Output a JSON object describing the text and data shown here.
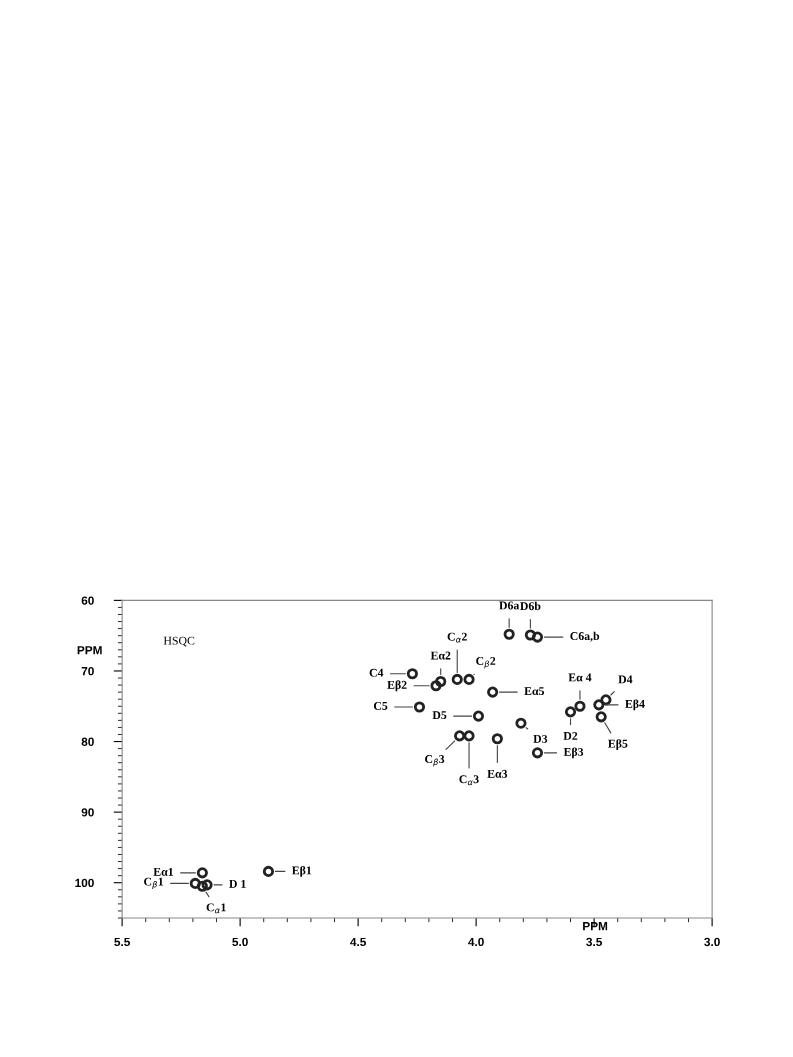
{
  "chart_data": {
    "type": "scatter",
    "xlabel": "PPM",
    "ylabel": "PPM",
    "x": [
      5.16,
      5.19,
      5.14,
      5.16,
      4.88,
      4.27,
      4.15,
      4.17,
      4.24,
      4.08,
      4.03,
      3.93,
      3.86,
      3.77,
      3.74,
      3.99,
      3.81,
      4.07,
      4.03,
      3.91,
      3.74,
      3.6,
      3.56,
      3.45,
      3.48,
      3.47
    ],
    "series": [
      {
        "color": "#222222",
        "values": [
          98.6,
          100.1,
          100.3,
          100.5,
          98.4,
          70.4,
          71.5,
          72.1,
          75.1,
          71.2,
          71.2,
          73.0,
          64.8,
          64.9,
          65.2,
          76.4,
          77.4,
          79.2,
          79.2,
          79.6,
          81.6,
          75.8,
          75.0,
          74.1,
          74.8,
          76.5
        ]
      }
    ],
    "marker": "circle",
    "annotations": [
      "HSQC",
      {
        "text": "Eα1",
        "x": 5.16,
        "y": 98.6
      },
      {
        "text": "C$_{β}$1",
        "x": 5.19,
        "y": 100.1
      },
      {
        "text": "D 1",
        "x": 5.14,
        "y": 100.3
      },
      {
        "text": "C$_{α}$1",
        "x": 5.16,
        "y": 100.5
      },
      {
        "text": "Eβ1",
        "x": 4.88,
        "y": 98.4
      },
      {
        "text": "C4",
        "x": 4.27,
        "y": 70.4
      },
      {
        "text": "Eα2",
        "x": 4.15,
        "y": 71.5
      },
      {
        "text": "Eβ2",
        "x": 4.17,
        "y": 72.1
      },
      {
        "text": "C5",
        "x": 4.24,
        "y": 75.1
      },
      {
        "text": "C$_{α}$2",
        "x": 4.08,
        "y": 71.2
      },
      {
        "text": "C$_{β}$2",
        "x": 4.03,
        "y": 71.2
      },
      {
        "text": "Eα5",
        "x": 3.93,
        "y": 73.0
      },
      {
        "text": "D6a",
        "x": 3.86,
        "y": 64.8
      },
      {
        "text": "D6b",
        "x": 3.77,
        "y": 64.9
      },
      {
        "text": "C6a,b",
        "x": 3.74,
        "y": 65.2
      },
      {
        "text": "D5",
        "x": 3.99,
        "y": 76.4
      },
      {
        "text": "D3",
        "x": 3.81,
        "y": 77.4
      },
      {
        "text": "C$_{β}$3",
        "x": 4.07,
        "y": 79.2
      },
      {
        "text": "C$_{α}$3",
        "x": 4.03,
        "y": 79.2
      },
      {
        "text": "Eα3",
        "x": 3.91,
        "y": 79.6
      },
      {
        "text": "Eβ3",
        "x": 3.74,
        "y": 81.6
      },
      {
        "text": "D2",
        "x": 3.6,
        "y": 75.8
      },
      {
        "text": "Eα 4",
        "x": 3.56,
        "y": 75.0
      },
      {
        "text": "D4",
        "x": 3.45,
        "y": 74.1
      },
      {
        "text": "Eβ4",
        "x": 3.48,
        "y": 74.8
      },
      {
        "text": "Eβ5",
        "x": 3.47,
        "y": 76.5
      }
    ],
    "xlim": [
      5.5,
      3.0
    ],
    "xticks": [
      {
        "value": 5.5,
        "label": "5.5"
      },
      {
        "value": 5.0,
        "label": "5.0"
      },
      {
        "value": 4.5,
        "label": "4.5"
      },
      {
        "value": 4.0,
        "label": "4.0"
      },
      {
        "value": 3.5,
        "label": "3.5"
      },
      {
        "value": 3.0,
        "label": "3.0"
      }
    ],
    "ylim": [
      105,
      60
    ],
    "yticks": [
      60,
      70,
      80,
      90,
      100
    ],
    "grid": false,
    "legend": false
  }
}
